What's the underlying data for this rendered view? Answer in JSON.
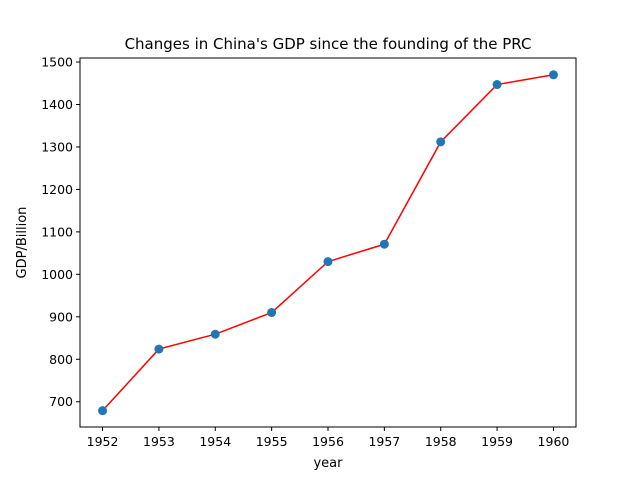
{
  "chart_data": {
    "type": "line",
    "title": "Changes in China's GDP since the founding of the PRC",
    "xlabel": "year",
    "ylabel": "GDP/Billion",
    "x": [
      1952,
      1953,
      1954,
      1955,
      1956,
      1957,
      1958,
      1959,
      1960
    ],
    "series": [
      {
        "name": "GDP",
        "values": [
          679,
          824,
          859,
          910,
          1030,
          1071,
          1312,
          1447,
          1470
        ],
        "line_color": "#ff0000",
        "marker_color": "#1f77b4"
      }
    ],
    "xlim": [
      1951.6,
      1960.4
    ],
    "ylim": [
      640.5,
      1509.5
    ],
    "xticks": [
      "1952",
      "1953",
      "1954",
      "1955",
      "1956",
      "1957",
      "1958",
      "1959",
      "1960"
    ],
    "yticks": [
      "700",
      "800",
      "900",
      "1000",
      "1100",
      "1200",
      "1300",
      "1400",
      "1500"
    ],
    "grid": false
  }
}
